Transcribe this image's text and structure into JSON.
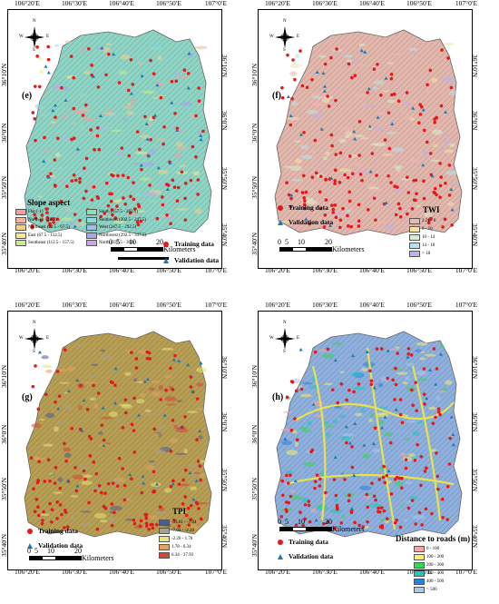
{
  "x_ticks": [
    "106°20′E",
    "106°30′E",
    "106°40′E",
    "106°50′E",
    "107°0′E"
  ],
  "y_ticks": [
    "36°10′N",
    "36°0′N",
    "35°50′N",
    "35°40′N"
  ],
  "legend_common": {
    "training": "Training data",
    "validation": "Validation data"
  },
  "scale": {
    "nums": [
      "0",
      "5",
      "10",
      "20"
    ],
    "unit": "Kilometers"
  },
  "compass": {
    "n": "N",
    "s": "S",
    "e": "E",
    "w": "W"
  },
  "panels": [
    {
      "letter": "(e)",
      "title": "Slope aspect",
      "base_color": "#8fd4c5",
      "items": [
        {
          "label": "Flat (-1)",
          "color": "#f4a0a0"
        },
        {
          "label": "North (0 - 22.5)",
          "color": "#f2b49a"
        },
        {
          "label": "Northeast (22.5 - 67.5)",
          "color": "#f5cf8a"
        },
        {
          "label": "East (67.5 - 112.5)",
          "color": "#f6ec8c"
        },
        {
          "label": "Southeast (112.5 - 157.5)",
          "color": "#cdea8e"
        },
        {
          "label": "South (157.5 - 202.5)",
          "color": "#8fe0b0"
        },
        {
          "label": "Southwest (202.5 - 247.5)",
          "color": "#8fdad6"
        },
        {
          "label": "West (247.5 - 292.5)",
          "color": "#9cc3e6"
        },
        {
          "label": "Northwest (292.5 - 337.5)",
          "color": "#a6a8e8"
        },
        {
          "label": "North (337.5 - 360)",
          "color": "#c9a6e8"
        }
      ]
    },
    {
      "letter": "(f)",
      "title": "TWI",
      "base_color": "#e2b7ae",
      "items": [
        {
          "label": "2.21 - 6",
          "color": "#f0b7b0"
        },
        {
          "label": "6 - 10",
          "color": "#f6e2a8"
        },
        {
          "label": "10 - 14",
          "color": "#d5f0c8"
        },
        {
          "label": "14 - 18",
          "color": "#b8e3ea"
        },
        {
          "label": "> 18",
          "color": "#b9b5ea"
        }
      ]
    },
    {
      "letter": "(g)",
      "title": "TPI",
      "base_color": "#b79e55",
      "items": [
        {
          "label": "-34.61 - -7.04",
          "color": "#4d5a9a"
        },
        {
          "label": "-7.04 - -2.20",
          "color": "#a8a090"
        },
        {
          "label": "-2.20 - 1.78",
          "color": "#e9e37a"
        },
        {
          "label": "1.78 - 6.34",
          "color": "#e3a35d"
        },
        {
          "label": "6.34 - 37.93",
          "color": "#d9433a"
        }
      ]
    },
    {
      "letter": "(h)",
      "title": "Distance to roads (m)",
      "base_color": "#8fb0dd",
      "items": [
        {
          "label": "0 - 100",
          "color": "#f4a6a6"
        },
        {
          "label": "100 - 200",
          "color": "#f4f06a"
        },
        {
          "label": "200 - 300",
          "color": "#37d65a"
        },
        {
          "label": "300 - 400",
          "color": "#20c7c0"
        },
        {
          "label": "400 - 500",
          "color": "#2e7fe0"
        },
        {
          "label": "> 500",
          "color": "#a9c8ee"
        }
      ]
    }
  ]
}
